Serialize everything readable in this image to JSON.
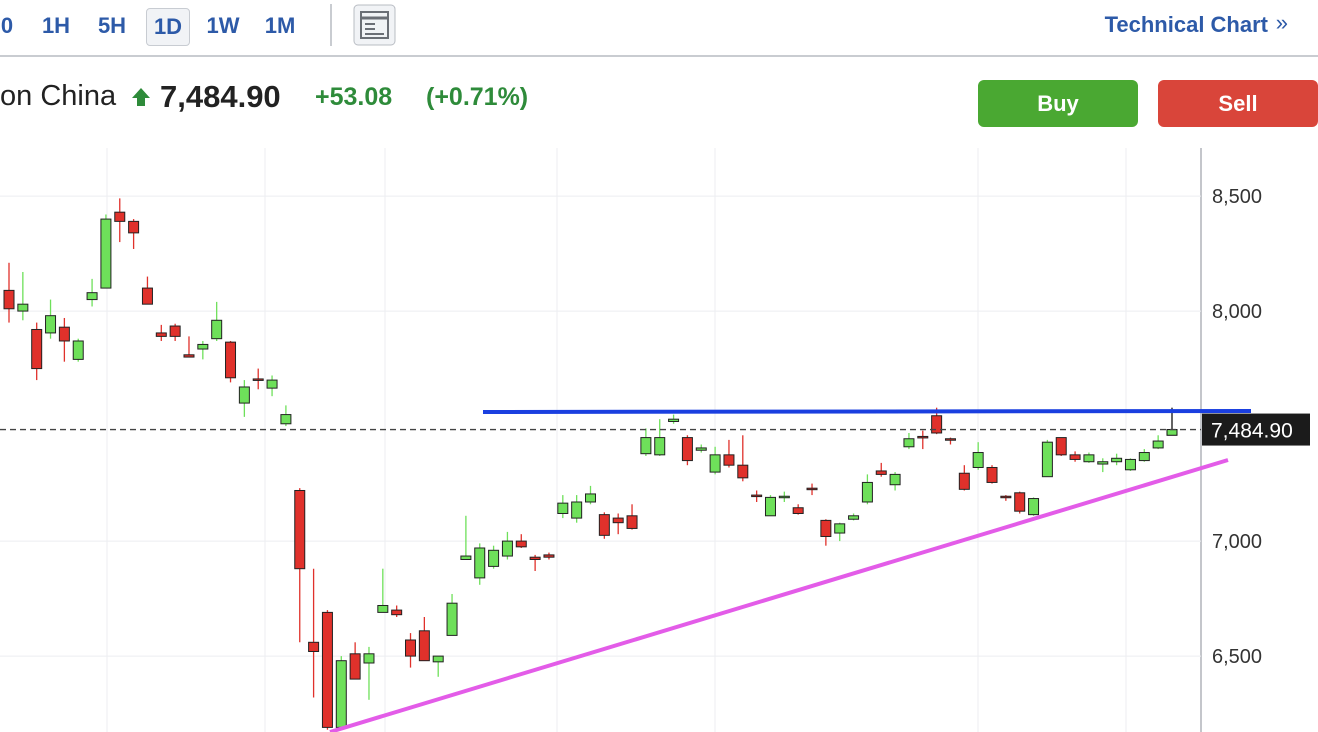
{
  "header": {
    "timeframes": [
      "0",
      "1H",
      "5H",
      "1D",
      "1W",
      "1M"
    ],
    "selected_timeframe": "1D",
    "technical_chart": "Technical Chart",
    "chevron": "»",
    "instrument": "on China",
    "price": "7,484.90",
    "change": "+53.08",
    "change_percent": "(+0.71%)",
    "buy": "Buy",
    "sell": "Sell"
  },
  "chart_data": {
    "type": "candlestick",
    "up_color": "#6ee05a",
    "down_color": "#e0312b",
    "open": [
      8090,
      8000,
      7920,
      7905,
      7930,
      7790,
      8050,
      8100,
      8430,
      8390,
      8100,
      7905,
      7935,
      7810,
      7835,
      7880,
      7865,
      7600,
      7705,
      7665,
      7510,
      7220,
      6560,
      6690,
      6190,
      6510,
      6470,
      6690,
      6700,
      6570,
      6610,
      6475,
      6590,
      6920,
      6840,
      6890,
      6935,
      7000,
      6930,
      6940,
      7120,
      7100,
      7170,
      7115,
      7100,
      7110,
      7380,
      7375,
      7520,
      7450,
      7395,
      7300,
      7375,
      7330,
      7200,
      7110,
      7190,
      7145,
      7230,
      7090,
      7035,
      7095,
      7170,
      7305,
      7245,
      7410,
      7455,
      7545,
      7445,
      7295,
      7320,
      7320,
      7195,
      7210,
      7115,
      7280,
      7450,
      7375,
      7345,
      7335,
      7345,
      7310,
      7350,
      7405,
      7460
    ],
    "high": [
      8210,
      8170,
      7950,
      8050,
      7970,
      7880,
      8140,
      8420,
      8490,
      8400,
      8150,
      7940,
      7945,
      7890,
      7870,
      8040,
      7870,
      7700,
      7750,
      7720,
      7590,
      7230,
      6880,
      6700,
      6500,
      6560,
      6540,
      6880,
      6720,
      6600,
      6670,
      6500,
      6770,
      7110,
      6990,
      6980,
      7040,
      7030,
      6940,
      6950,
      7200,
      7200,
      7240,
      7125,
      7120,
      7160,
      7490,
      7530,
      7550,
      7460,
      7420,
      7410,
      7440,
      7460,
      7220,
      7200,
      7215,
      7160,
      7250,
      7095,
      7080,
      7120,
      7290,
      7340,
      7300,
      7470,
      7480,
      7580,
      7450,
      7330,
      7430,
      7330,
      7200,
      7215,
      7190,
      7440,
      7450,
      7390,
      7385,
      7360,
      7380,
      7360,
      7400,
      7460,
      7580
    ],
    "low": [
      7950,
      7960,
      7700,
      7880,
      7780,
      7780,
      8020,
      8100,
      8300,
      8270,
      8030,
      7870,
      7870,
      7800,
      7790,
      7870,
      7690,
      7540,
      7660,
      7630,
      7500,
      6560,
      6320,
      6180,
      6190,
      6400,
      6310,
      6690,
      6670,
      6450,
      6480,
      6410,
      6590,
      6920,
      6810,
      6880,
      6920,
      6970,
      6870,
      6920,
      7100,
      7080,
      7160,
      7010,
      7030,
      7050,
      7370,
      7370,
      7510,
      7330,
      7385,
      7290,
      7320,
      7260,
      7170,
      7110,
      7170,
      7115,
      7200,
      6980,
      7000,
      7090,
      7160,
      7280,
      7220,
      7400,
      7400,
      7465,
      7420,
      7220,
      7310,
      7250,
      7175,
      7120,
      7110,
      7280,
      7370,
      7345,
      7340,
      7300,
      7330,
      7305,
      7345,
      7400,
      7460
    ],
    "close": [
      8010,
      8030,
      7750,
      7980,
      7870,
      7870,
      8080,
      8400,
      8390,
      8340,
      8030,
      7890,
      7890,
      7800,
      7855,
      7960,
      7710,
      7670,
      7700,
      7700,
      7550,
      6880,
      6520,
      6190,
      6480,
      6400,
      6510,
      6720,
      6680,
      6500,
      6480,
      6500,
      6730,
      6935,
      6970,
      6960,
      7000,
      6975,
      6920,
      6930,
      7165,
      7170,
      7205,
      7025,
      7080,
      7055,
      7450,
      7450,
      7530,
      7350,
      7405,
      7375,
      7330,
      7275,
      7195,
      7190,
      7195,
      7120,
      7225,
      7020,
      7075,
      7110,
      7255,
      7290,
      7290,
      7445,
      7450,
      7470,
      7440,
      7225,
      7385,
      7255,
      7190,
      7130,
      7185,
      7430,
      7375,
      7355,
      7375,
      7345,
      7360,
      7355,
      7385,
      7435,
      7484.9
    ],
    "ylim": [
      6170,
      8709
    ],
    "yticks": [
      {
        "value": 6500,
        "label": "6,500"
      },
      {
        "value": 7000,
        "label": "7,000"
      },
      {
        "value": 8000,
        "label": "8,000"
      },
      {
        "value": 8500,
        "label": "8,500"
      }
    ],
    "grid": true,
    "last_price": {
      "value": 7484.9,
      "label": "7,484.90"
    }
  }
}
